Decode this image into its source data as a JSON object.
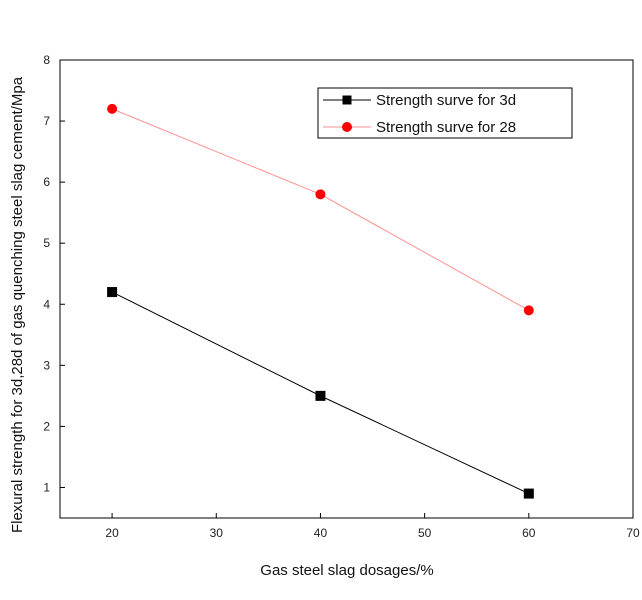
{
  "chart_data": {
    "type": "line",
    "xlabel": "Gas steel slag dosages/%",
    "ylabel": "Flexural strength for 3d,28d of gas quenching steel slag cement/Mpa",
    "xlim": [
      15,
      70
    ],
    "ylim": [
      0.5,
      8
    ],
    "xticks": [
      20,
      30,
      40,
      50,
      60,
      70
    ],
    "yticks": [
      1,
      2,
      3,
      4,
      5,
      6,
      7,
      8
    ],
    "grid": false,
    "legend_position": "top-right",
    "series": [
      {
        "name": "Strength surve for 3d",
        "marker": "square",
        "color": "#000000",
        "x": [
          20,
          40,
          60
        ],
        "y": [
          4.2,
          2.5,
          0.9
        ]
      },
      {
        "name": "Strength surve for 28",
        "marker": "circle",
        "color": "#ff0000",
        "line_color": "#ff9090",
        "x": [
          20,
          40,
          60
        ],
        "y": [
          7.2,
          5.8,
          3.9
        ]
      }
    ]
  }
}
